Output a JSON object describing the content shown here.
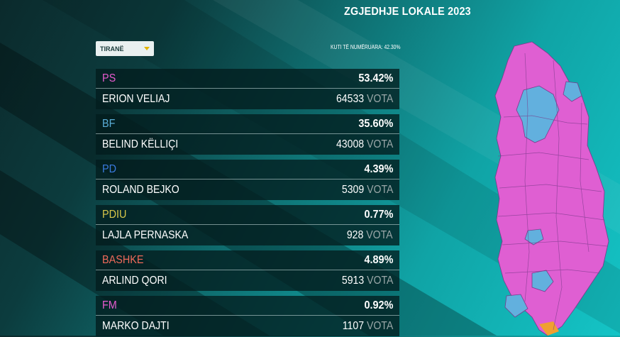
{
  "header": {
    "title": "ZGJEDHJE LOKALE 2023"
  },
  "filter": {
    "selected": "TIRANË",
    "counted_text": "KUTI TË NUMËRUARA: 42.30%"
  },
  "candidates": [
    {
      "party": "PS",
      "party_color": "#e85bd0",
      "percent": "53.42%",
      "name": "ERION VELIAJ",
      "votes": "64533",
      "votes_label": "VOTA"
    },
    {
      "party": "BF",
      "party_color": "#5aaed8",
      "percent": "35.60%",
      "name": "BELIND KËLLIÇI",
      "votes": "43008",
      "votes_label": "VOTA"
    },
    {
      "party": "PD",
      "party_color": "#3a7be0",
      "percent": "4.39%",
      "name": "ROLAND BEJKO",
      "votes": "5309",
      "votes_label": "VOTA"
    },
    {
      "party": "PDIU",
      "party_color": "#d8c84a",
      "percent": "0.77%",
      "name": "LAJLA PERNASKA",
      "votes": "928",
      "votes_label": "VOTA"
    },
    {
      "party": "BASHKE",
      "party_color": "#f06a5a",
      "percent": "4.89%",
      "name": "ARLIND QORI",
      "votes": "5913",
      "votes_label": "VOTA"
    },
    {
      "party": "FM",
      "party_color": "#e85bd0",
      "percent": "0.92%",
      "name": "MARKO DAJTI",
      "votes": "1107",
      "votes_label": "VOTA"
    }
  ],
  "map": {
    "name": "albania-results-map-icon",
    "colors": {
      "ps": "#df5fd2",
      "bf": "#62b0de",
      "other": "#f0a030",
      "border": "#7a3a8a"
    }
  }
}
